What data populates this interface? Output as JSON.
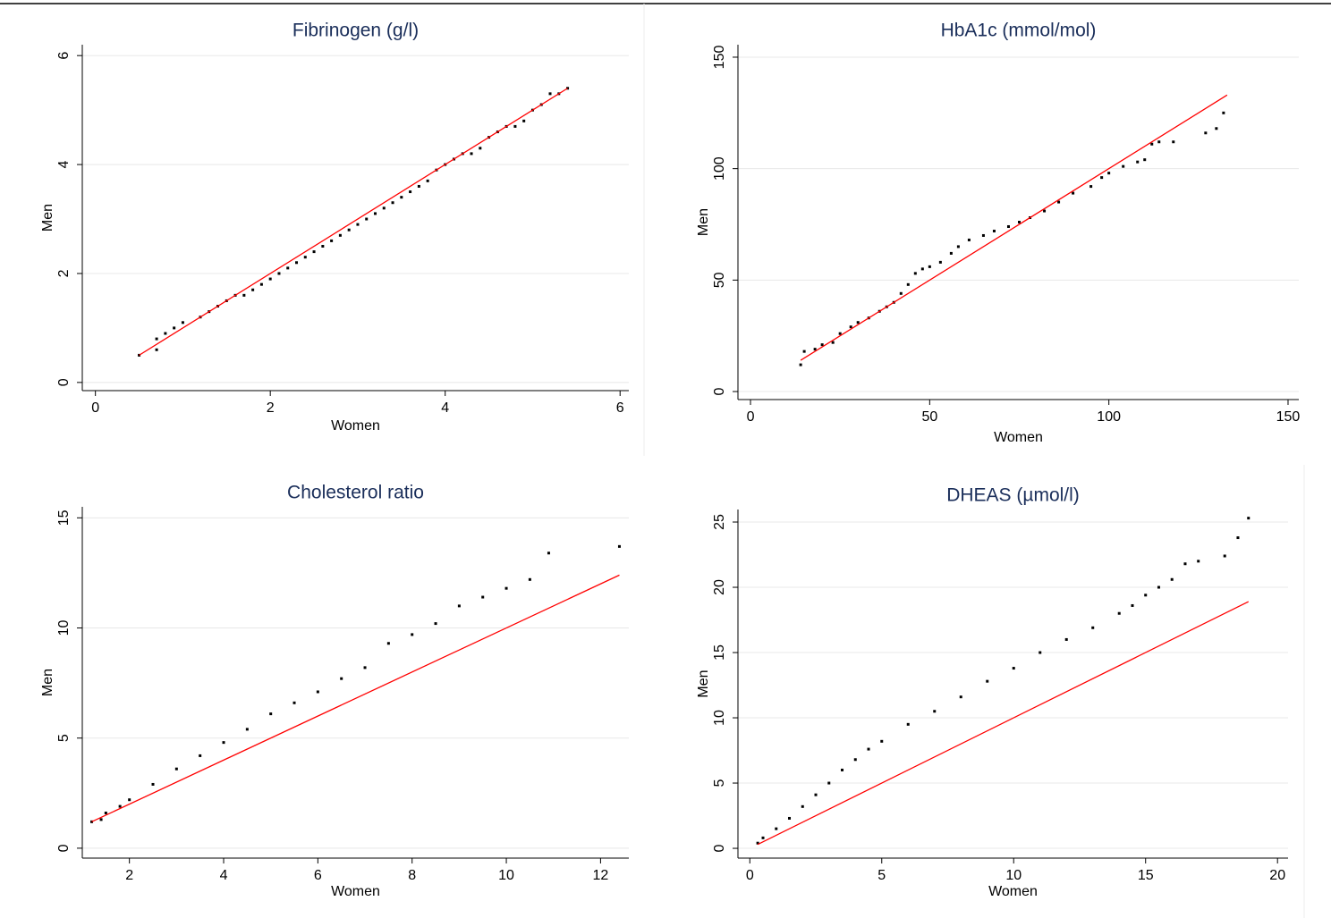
{
  "chart_data": [
    {
      "type": "scatter",
      "title": "Fibrinogen (g/l)",
      "xlabel": "Women",
      "ylabel": "Men",
      "xlim": [
        -0.15,
        6.1
      ],
      "ylim": [
        -0.15,
        6.2
      ],
      "xticks": [
        0,
        2,
        4,
        6
      ],
      "yticks": [
        0,
        2,
        4,
        6
      ],
      "grid": true,
      "series": [
        {
          "color": "#000000",
          "x": [
            0.5,
            0.7,
            0.7,
            0.8,
            0.9,
            1.0,
            1.2,
            1.3,
            1.4,
            1.5,
            1.6,
            1.7,
            1.8,
            1.9,
            2.0,
            2.1,
            2.2,
            2.3,
            2.4,
            2.5,
            2.6,
            2.7,
            2.8,
            2.9,
            3.0,
            3.1,
            3.2,
            3.3,
            3.4,
            3.5,
            3.6,
            3.7,
            3.8,
            3.9,
            4.0,
            4.1,
            4.2,
            4.3,
            4.4,
            4.5,
            4.6,
            4.7,
            4.8,
            4.9,
            5.0,
            5.1,
            5.2,
            5.3,
            5.4
          ],
          "values": [
            0.5,
            0.6,
            0.8,
            0.9,
            1.0,
            1.1,
            1.2,
            1.3,
            1.4,
            1.5,
            1.6,
            1.6,
            1.7,
            1.8,
            1.9,
            2.0,
            2.1,
            2.2,
            2.3,
            2.4,
            2.5,
            2.6,
            2.7,
            2.8,
            2.9,
            3.0,
            3.1,
            3.2,
            3.3,
            3.4,
            3.5,
            3.6,
            3.7,
            3.9,
            4.0,
            4.1,
            4.2,
            4.2,
            4.3,
            4.5,
            4.6,
            4.7,
            4.7,
            4.8,
            5.0,
            5.1,
            5.3,
            5.3,
            5.4
          ]
        },
        {
          "type": "line",
          "color": "#ff0000",
          "x": [
            0.5,
            5.4
          ],
          "values": [
            0.5,
            5.4
          ]
        }
      ]
    },
    {
      "type": "scatter",
      "title": "HbA1c (mmol/mol)",
      "xlabel": "Women",
      "ylabel": "Men",
      "xlim": [
        -3.5,
        153
      ],
      "ylim": [
        -3.6,
        155.6
      ],
      "xticks": [
        0,
        50,
        100,
        150
      ],
      "yticks": [
        0,
        50,
        100,
        150
      ],
      "grid": true,
      "series": [
        {
          "color": "#000000",
          "x": [
            14,
            15,
            18,
            20,
            23,
            25,
            28,
            30,
            33,
            36,
            38,
            40,
            42,
            44,
            46,
            48,
            50,
            53,
            56,
            58,
            61,
            65,
            68,
            72,
            75,
            78,
            82,
            86,
            90,
            95,
            98,
            100,
            104,
            108,
            110,
            112,
            114,
            118,
            127,
            130,
            132
          ],
          "values": [
            12,
            18,
            19,
            21,
            22,
            26,
            29,
            31,
            33,
            36,
            38,
            40,
            44,
            48,
            53,
            55,
            56,
            58,
            62,
            65,
            68,
            70,
            72,
            74,
            76,
            78,
            81,
            85,
            89,
            92,
            96,
            98,
            101,
            103,
            104,
            111,
            112,
            112,
            116,
            118,
            125
          ]
        },
        {
          "type": "line",
          "color": "#ff0000",
          "x": [
            14,
            133
          ],
          "values": [
            14,
            133
          ]
        }
      ]
    },
    {
      "type": "scatter",
      "title": "Cholesterol ratio",
      "xlabel": "Women",
      "ylabel": "Men",
      "xlim": [
        1.0,
        12.6
      ],
      "ylim": [
        -0.45,
        15.5
      ],
      "xticks": [
        2,
        4,
        6,
        8,
        10,
        12
      ],
      "yticks": [
        0,
        5,
        10,
        15
      ],
      "grid": true,
      "series": [
        {
          "color": "#000000",
          "x": [
            1.2,
            1.4,
            1.5,
            1.8,
            2,
            2.5,
            3,
            3.5,
            4,
            4.5,
            5,
            5.5,
            6,
            6.5,
            7,
            7.5,
            8,
            8.5,
            9,
            9.5,
            10,
            10.5,
            10.9,
            12.4
          ],
          "values": [
            1.2,
            1.3,
            1.6,
            1.9,
            2.2,
            2.9,
            3.6,
            4.2,
            4.8,
            5.4,
            6.1,
            6.6,
            7.1,
            7.7,
            8.2,
            9.3,
            9.7,
            10.2,
            11.0,
            11.4,
            11.8,
            12.2,
            13.4,
            13.7
          ]
        },
        {
          "type": "line",
          "color": "#ff0000",
          "x": [
            1.2,
            12.4
          ],
          "values": [
            1.2,
            12.4
          ]
        }
      ]
    },
    {
      "type": "scatter",
      "title": "DHEAS (µmol/l)",
      "xlabel": "Women",
      "ylabel": "Men",
      "xlim": [
        -0.45,
        20.4
      ],
      "ylim": [
        -0.75,
        25.96
      ],
      "xticks": [
        0,
        5,
        10,
        15,
        20
      ],
      "yticks": [
        0,
        5,
        10,
        15,
        20,
        25
      ],
      "grid": true,
      "series": [
        {
          "color": "#000000",
          "x": [
            0.3,
            0.5,
            1,
            1.5,
            2,
            2.5,
            3,
            3.5,
            4,
            4.5,
            5,
            6,
            7,
            8,
            9,
            10,
            11,
            12,
            13,
            14,
            14.5,
            15,
            15.5,
            16,
            16.5,
            17,
            18,
            18.5,
            18.9
          ],
          "values": [
            0.4,
            0.8,
            1.5,
            2.3,
            3.2,
            4.1,
            5.0,
            6.0,
            6.8,
            7.6,
            8.2,
            9.5,
            10.5,
            11.6,
            12.8,
            13.8,
            15.0,
            16.0,
            16.9,
            18.0,
            18.6,
            19.4,
            20,
            20.6,
            21.8,
            22,
            22.4,
            23.8,
            25.3
          ]
        },
        {
          "type": "line",
          "color": "#ff0000",
          "x": [
            0.3,
            18.9
          ],
          "values": [
            0.3,
            18.9
          ]
        }
      ]
    }
  ]
}
